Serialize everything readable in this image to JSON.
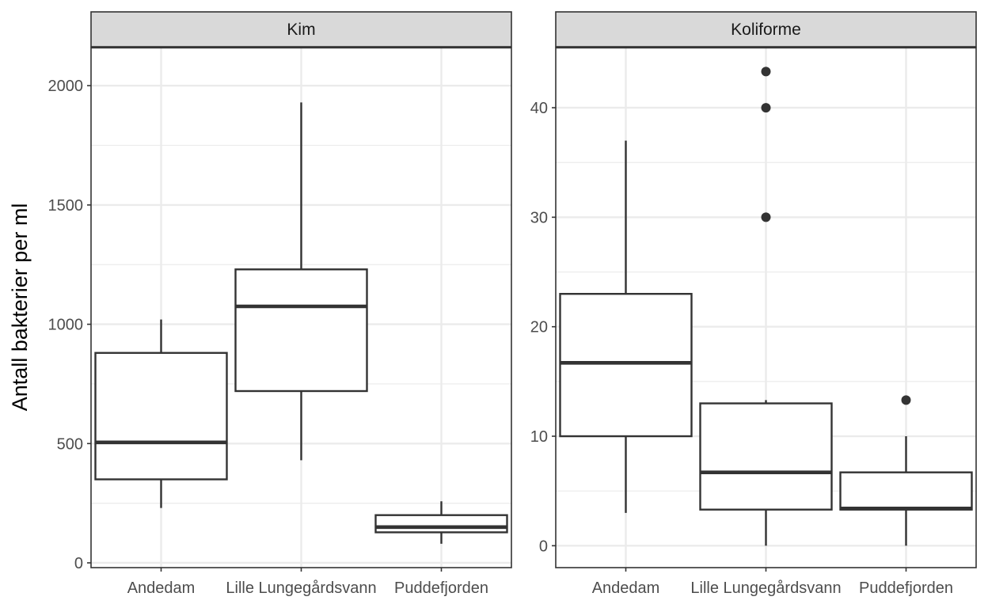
{
  "chart_data": {
    "type": "boxplot",
    "ylabel": "Antall bakterier per ml",
    "xlabel": "",
    "categories": [
      "Andedam",
      "Lille Lungegårdsvann",
      "Puddefjorden"
    ],
    "grid": true,
    "facets": [
      {
        "name": "Kim",
        "ylim": [
          -20,
          2160
        ],
        "yticks": [
          0,
          500,
          1000,
          1500,
          2000
        ],
        "ytick_labels": [
          "0",
          "500",
          "1000",
          "1500",
          "2000"
        ],
        "boxes": [
          {
            "category": "Andedam",
            "whisker_low": 230,
            "q1": 350,
            "median": 505,
            "q3": 880,
            "whisker_high": 1020,
            "outliers": []
          },
          {
            "category": "Lille Lungegårdsvann",
            "whisker_low": 430,
            "q1": 720,
            "median": 1075,
            "q3": 1230,
            "whisker_high": 1930,
            "outliers": []
          },
          {
            "category": "Puddefjorden",
            "whisker_low": 80,
            "q1": 128,
            "median": 150,
            "q3": 200,
            "whisker_high": 258,
            "outliers": []
          }
        ]
      },
      {
        "name": "Koliforme",
        "ylim": [
          -2,
          45.5
        ],
        "yticks": [
          0,
          10,
          20,
          30,
          40
        ],
        "ytick_labels": [
          "0",
          "10",
          "20",
          "30",
          "40"
        ],
        "boxes": [
          {
            "category": "Andedam",
            "whisker_low": 3,
            "q1": 10,
            "median": 16.7,
            "q3": 23,
            "whisker_high": 37,
            "outliers": []
          },
          {
            "category": "Lille Lungegårdsvann",
            "whisker_low": 0,
            "q1": 3.3,
            "median": 6.7,
            "q3": 13,
            "whisker_high": 13.3,
            "outliers": [
              30,
              40,
              43.3
            ]
          },
          {
            "category": "Puddefjorden",
            "whisker_low": 0,
            "q1": 3.3,
            "median": 3.4,
            "q3": 6.7,
            "whisker_high": 10,
            "outliers": [
              13.3
            ]
          }
        ]
      }
    ]
  }
}
